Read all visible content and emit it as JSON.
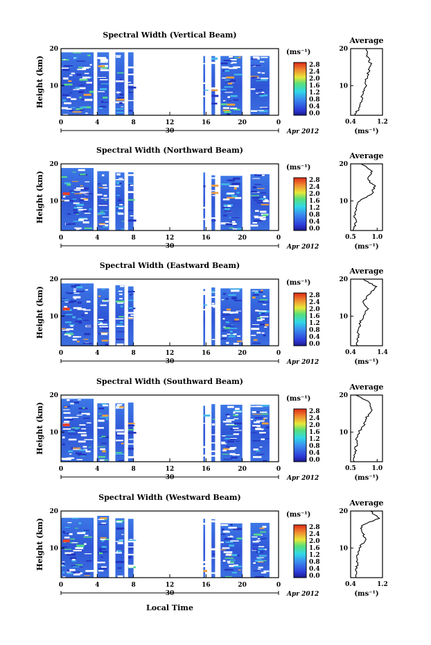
{
  "figure": {
    "date_label": "Apr 2012",
    "xaxis_title": "Local Time",
    "date_day_label": "30",
    "ylabel": "Height (km)",
    "colorbar_unit": "(ms⁻¹)",
    "avg_title": "Average",
    "avg_xunit": "(ms⁻¹)"
  },
  "chart_data": [
    {
      "type": "heatmap",
      "title": "Spectral Width (Vertical Beam)",
      "x_ticks": [
        "0",
        "4",
        "8",
        "12",
        "16",
        "20",
        "0"
      ],
      "xlim": [
        0,
        24
      ],
      "y_ticks": [
        "20",
        "10"
      ],
      "ylim": [
        2,
        20
      ],
      "ylabel": "Height (km)",
      "colorbar": {
        "ticks": [
          "2.8",
          "2.4",
          "2.0",
          "1.6",
          "1.2",
          "0.8",
          "0.4",
          "0.0"
        ],
        "range": [
          0.0,
          2.8
        ],
        "unit": "(ms⁻¹)"
      },
      "data_gaps_hours": [
        [
          8.0,
          16.0
        ]
      ],
      "average_profile": {
        "title": "Average",
        "xlabel": "(ms⁻¹)",
        "x_ticks": [
          "0.4",
          "1.2"
        ],
        "xlim": [
          0.4,
          1.2
        ],
        "y_ticks": [
          "20",
          "10"
        ],
        "ylim": [
          2,
          20
        ],
        "height_km": [
          2,
          4,
          6,
          8,
          10,
          12,
          14,
          16,
          18,
          20
        ],
        "width_ms": [
          0.5,
          0.62,
          0.66,
          0.72,
          0.78,
          0.8,
          0.86,
          0.9,
          0.82,
          0.8
        ]
      }
    },
    {
      "type": "heatmap",
      "title": "Spectral Width (Northward Beam)",
      "x_ticks": [
        "0",
        "4",
        "8",
        "12",
        "16",
        "20",
        "0"
      ],
      "xlim": [
        0,
        24
      ],
      "y_ticks": [
        "20",
        "10"
      ],
      "ylim": [
        2,
        20
      ],
      "ylabel": "Height (km)",
      "colorbar": {
        "ticks": [
          "2.8",
          "2.4",
          "2.0",
          "1.6",
          "1.2",
          "0.8",
          "0.4",
          "0.0"
        ],
        "range": [
          0.0,
          2.8
        ],
        "unit": "(ms⁻¹)"
      },
      "data_gaps_hours": [
        [
          8.0,
          16.0
        ]
      ],
      "average_profile": {
        "title": "Average",
        "xlabel": "(ms⁻¹)",
        "x_ticks": [
          "0.5",
          "1.0"
        ],
        "xlim": [
          0.5,
          1.1
        ],
        "y_ticks": [
          "20",
          "10"
        ],
        "ylim": [
          2,
          20
        ],
        "height_km": [
          2,
          4,
          6,
          8,
          10,
          12,
          14,
          16,
          18,
          20
        ],
        "width_ms": [
          0.55,
          0.6,
          0.58,
          0.6,
          0.66,
          0.9,
          0.95,
          0.8,
          0.92,
          0.7
        ]
      }
    },
    {
      "type": "heatmap",
      "title": "Spectral Width (Eastward Beam)",
      "x_ticks": [
        "0",
        "4",
        "8",
        "12",
        "16",
        "20",
        "0"
      ],
      "xlim": [
        0,
        24
      ],
      "y_ticks": [
        "20",
        "10"
      ],
      "ylim": [
        2,
        20
      ],
      "ylabel": "Height (km)",
      "colorbar": {
        "ticks": [
          "2.8",
          "2.4",
          "2.0",
          "1.6",
          "1.2",
          "0.8",
          "0.4",
          "0.0"
        ],
        "range": [
          0.0,
          2.8
        ],
        "unit": "(ms⁻¹)"
      },
      "data_gaps_hours": [
        [
          8.0,
          16.0
        ]
      ],
      "average_profile": {
        "title": "Average",
        "xlabel": "(ms⁻¹)",
        "x_ticks": [
          "0.4",
          "1.4"
        ],
        "xlim": [
          0.4,
          1.4
        ],
        "y_ticks": [
          "20",
          "10"
        ],
        "ylim": [
          2,
          20
        ],
        "height_km": [
          2,
          4,
          6,
          8,
          10,
          12,
          14,
          16,
          18,
          20
        ],
        "width_ms": [
          0.6,
          0.62,
          0.65,
          0.7,
          0.78,
          0.95,
          0.8,
          1.0,
          1.2,
          0.8
        ]
      }
    },
    {
      "type": "heatmap",
      "title": "Spectral Width (Southward Beam)",
      "x_ticks": [
        "0",
        "4",
        "8",
        "12",
        "16",
        "20",
        "0"
      ],
      "xlim": [
        0,
        24
      ],
      "y_ticks": [
        "20",
        "10"
      ],
      "ylim": [
        2,
        20
      ],
      "ylabel": "Height (km)",
      "colorbar": {
        "ticks": [
          "2.8",
          "2.4",
          "2.0",
          "1.6",
          "1.2",
          "0.8",
          "0.4",
          "0.0"
        ],
        "range": [
          0.0,
          2.8
        ],
        "unit": "(ms⁻¹)"
      },
      "data_gaps_hours": [
        [
          8.0,
          16.0
        ]
      ],
      "average_profile": {
        "title": "Average",
        "xlabel": "(ms⁻¹)",
        "x_ticks": [
          "0.5",
          "1.0"
        ],
        "xlim": [
          0.5,
          1.1
        ],
        "y_ticks": [
          "20",
          "10"
        ],
        "ylim": [
          2,
          20
        ],
        "height_km": [
          2,
          4,
          6,
          8,
          10,
          12,
          14,
          16,
          18,
          20
        ],
        "width_ms": [
          0.55,
          0.58,
          0.6,
          0.62,
          0.65,
          0.75,
          0.8,
          0.9,
          0.85,
          0.6
        ]
      }
    },
    {
      "type": "heatmap",
      "title": "Spectral Width (Westward Beam)",
      "x_ticks": [
        "0",
        "4",
        "8",
        "12",
        "16",
        "20",
        "0"
      ],
      "xlim": [
        0,
        24
      ],
      "y_ticks": [
        "20",
        "10"
      ],
      "ylim": [
        2,
        20
      ],
      "ylabel": "Height (km)",
      "colorbar": {
        "ticks": [
          "2.8",
          "2.4",
          "2.0",
          "1.6",
          "1.2",
          "0.8",
          "0.4",
          "0.0"
        ],
        "range": [
          0.0,
          2.8
        ],
        "unit": "(ms⁻¹)"
      },
      "data_gaps_hours": [
        [
          8.0,
          16.0
        ]
      ],
      "average_profile": {
        "title": "Average",
        "xlabel": "(ms⁻¹)",
        "x_ticks": [
          "0.4",
          "1.2"
        ],
        "xlim": [
          0.4,
          1.2
        ],
        "y_ticks": [
          "20",
          "10"
        ],
        "ylim": [
          2,
          20
        ],
        "height_km": [
          2,
          4,
          6,
          8,
          10,
          12,
          14,
          16,
          18,
          20
        ],
        "width_ms": [
          0.52,
          0.55,
          0.56,
          0.58,
          0.6,
          0.78,
          0.7,
          0.65,
          1.1,
          0.9
        ]
      }
    }
  ]
}
